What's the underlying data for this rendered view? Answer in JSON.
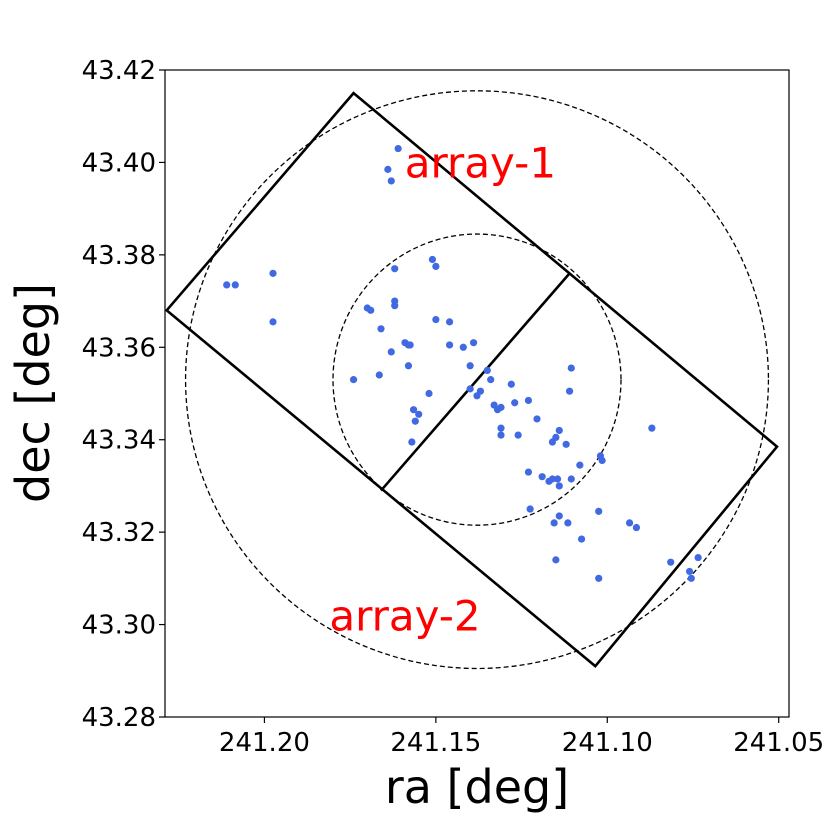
{
  "chart_data": {
    "type": "scatter",
    "title": "",
    "xlabel": "ra [deg]",
    "ylabel": "dec [deg]",
    "xlim": [
      241.229,
      241.047
    ],
    "ylim": [
      43.28,
      43.42
    ],
    "x_inverted": true,
    "xticks": [
      241.2,
      241.15,
      241.1,
      241.05
    ],
    "xtick_labels": [
      "241.20",
      "241.15",
      "241.10",
      "241.05"
    ],
    "yticks": [
      43.28,
      43.3,
      43.32,
      43.34,
      43.36,
      43.38,
      43.4,
      43.42
    ],
    "ytick_labels": [
      "43.28",
      "43.30",
      "43.32",
      "43.34",
      "43.36",
      "43.38",
      "43.40",
      "43.42"
    ],
    "grid": false,
    "point_color": "#4169e1",
    "annotation_color": "#ff0000",
    "annotations": [
      {
        "text": "array-1",
        "x": 241.137,
        "y": 43.4
      },
      {
        "text": "array-2",
        "x": 241.159,
        "y": 43.302
      }
    ],
    "circles": [
      {
        "center": [
          241.138,
          43.353
        ],
        "rx_deg": 0.085,
        "ry_deg": 0.0625,
        "style": "dashed"
      },
      {
        "center": [
          241.138,
          43.353
        ],
        "rx_deg": 0.042,
        "ry_deg": 0.0315,
        "style": "dashed"
      }
    ],
    "footprint": {
      "outline": [
        [
          241.174,
          43.415
        ],
        [
          241.0505,
          43.3385
        ],
        [
          241.1035,
          43.291
        ],
        [
          241.2285,
          43.368
        ]
      ],
      "divider": [
        [
          241.111,
          43.376
        ],
        [
          241.166,
          43.329
        ]
      ]
    },
    "points": [
      [
        241.161,
        43.403
      ],
      [
        241.164,
        43.3985
      ],
      [
        241.163,
        43.396
      ],
      [
        241.211,
        43.3735
      ],
      [
        241.2085,
        43.3735
      ],
      [
        241.1975,
        43.376
      ],
      [
        241.1975,
        43.3655
      ],
      [
        241.162,
        43.377
      ],
      [
        241.151,
        43.379
      ],
      [
        241.15,
        43.3775
      ],
      [
        241.162,
        43.37
      ],
      [
        241.162,
        43.369
      ],
      [
        241.17,
        43.3685
      ],
      [
        241.169,
        43.368
      ],
      [
        241.166,
        43.364
      ],
      [
        241.15,
        43.366
      ],
      [
        241.146,
        43.3655
      ],
      [
        241.159,
        43.361
      ],
      [
        241.158,
        43.3605
      ],
      [
        241.1575,
        43.3605
      ],
      [
        241.146,
        43.3605
      ],
      [
        241.142,
        43.36
      ],
      [
        241.139,
        43.361
      ],
      [
        241.163,
        43.359
      ],
      [
        241.158,
        43.356
      ],
      [
        241.14,
        43.356
      ],
      [
        241.135,
        43.355
      ],
      [
        241.174,
        43.353
      ],
      [
        241.1665,
        43.354
      ],
      [
        241.134,
        43.353
      ],
      [
        241.14,
        43.351
      ],
      [
        241.137,
        43.3505
      ],
      [
        241.138,
        43.3495
      ],
      [
        241.152,
        43.35
      ],
      [
        241.1565,
        43.3465
      ],
      [
        241.155,
        43.3455
      ],
      [
        241.156,
        43.344
      ],
      [
        241.157,
        43.3395
      ],
      [
        241.128,
        43.352
      ],
      [
        241.123,
        43.3485
      ],
      [
        241.127,
        43.348
      ],
      [
        241.133,
        43.3475
      ],
      [
        241.131,
        43.347
      ],
      [
        241.132,
        43.3465
      ],
      [
        241.131,
        43.3425
      ],
      [
        241.131,
        43.341
      ],
      [
        241.126,
        43.341
      ],
      [
        241.1205,
        43.3445
      ],
      [
        241.1105,
        43.3555
      ],
      [
        241.111,
        43.3505
      ],
      [
        241.114,
        43.342
      ],
      [
        241.115,
        43.3405
      ],
      [
        241.112,
        43.339
      ],
      [
        241.116,
        43.3395
      ],
      [
        241.087,
        43.3425
      ],
      [
        241.102,
        43.3365
      ],
      [
        241.1015,
        43.3355
      ],
      [
        241.108,
        43.3345
      ],
      [
        241.123,
        43.333
      ],
      [
        241.119,
        43.332
      ],
      [
        241.116,
        43.3315
      ],
      [
        241.1145,
        43.3315
      ],
      [
        241.117,
        43.331
      ],
      [
        241.114,
        43.33
      ],
      [
        241.1105,
        43.3315
      ],
      [
        241.1025,
        43.3245
      ],
      [
        241.114,
        43.3235
      ],
      [
        241.1155,
        43.322
      ],
      [
        241.1115,
        43.322
      ],
      [
        241.1225,
        43.325
      ],
      [
        241.1075,
        43.3185
      ],
      [
        241.0935,
        43.322
      ],
      [
        241.0915,
        43.321
      ],
      [
        241.115,
        43.314
      ],
      [
        241.1025,
        43.31
      ],
      [
        241.0815,
        43.3135
      ],
      [
        241.0735,
        43.3145
      ],
      [
        241.076,
        43.3115
      ],
      [
        241.0755,
        43.31
      ]
    ]
  }
}
